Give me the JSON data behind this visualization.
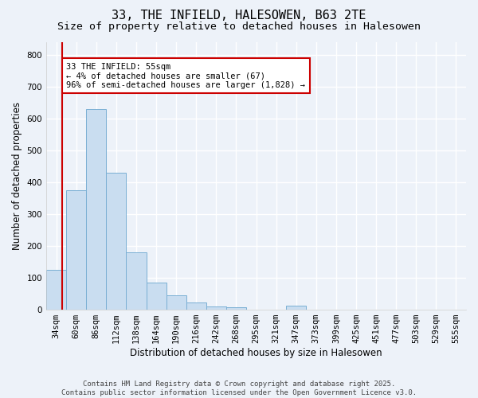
{
  "title": "33, THE INFIELD, HALESOWEN, B63 2TE",
  "subtitle": "Size of property relative to detached houses in Halesowen",
  "xlabel": "Distribution of detached houses by size in Halesowen",
  "ylabel": "Number of detached properties",
  "bins": [
    "34sqm",
    "60sqm",
    "86sqm",
    "112sqm",
    "138sqm",
    "164sqm",
    "190sqm",
    "216sqm",
    "242sqm",
    "268sqm",
    "295sqm",
    "321sqm",
    "347sqm",
    "373sqm",
    "399sqm",
    "425sqm",
    "451sqm",
    "477sqm",
    "503sqm",
    "529sqm",
    "555sqm"
  ],
  "values": [
    125,
    375,
    630,
    430,
    180,
    85,
    45,
    22,
    10,
    7,
    0,
    0,
    13,
    0,
    0,
    0,
    0,
    0,
    0,
    0,
    0
  ],
  "annotation_text": "33 THE INFIELD: 55sqm\n← 4% of detached houses are smaller (67)\n96% of semi-detached houses are larger (1,828) →",
  "bar_color": "#c9ddf0",
  "bar_edge_color": "#7aafd4",
  "line_color": "#cc0000",
  "annotation_box_facecolor": "#ffffff",
  "annotation_border_color": "#cc0000",
  "background_color": "#edf2f9",
  "grid_color": "#ffffff",
  "footer_text": "Contains HM Land Registry data © Crown copyright and database right 2025.\nContains public sector information licensed under the Open Government Licence v3.0.",
  "ylim": [
    0,
    840
  ],
  "yticks": [
    0,
    100,
    200,
    300,
    400,
    500,
    600,
    700,
    800
  ],
  "title_fontsize": 11,
  "subtitle_fontsize": 9.5,
  "ylabel_fontsize": 8.5,
  "xlabel_fontsize": 8.5,
  "tick_fontsize": 7.5,
  "annotation_fontsize": 7.5,
  "footer_fontsize": 6.5
}
